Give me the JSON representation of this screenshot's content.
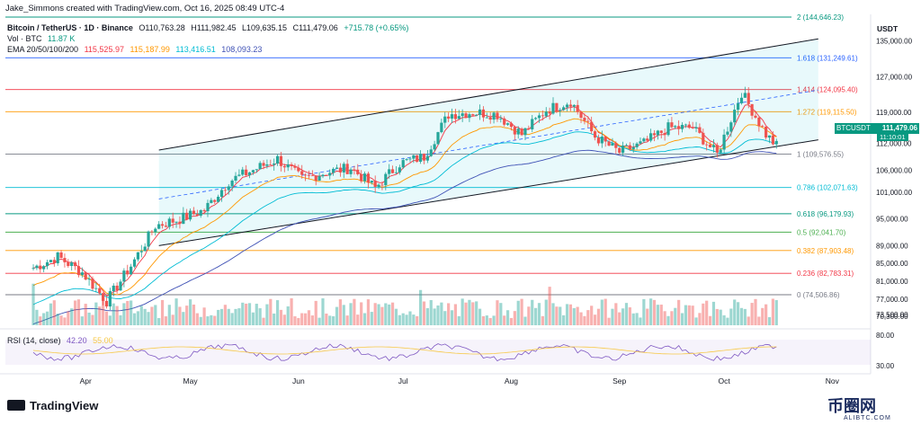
{
  "author": "Jake_Simmons created with TradingView.com, Oct 16, 2025 08:49 UTC-4",
  "symbol_title": "Bitcoin / TetherUS · 1D · Binance",
  "ohlc": {
    "o": "O110,763.28",
    "h": "H111,982.45",
    "l": "L109,635.15",
    "c": "C111,479.06",
    "chg": "+715.78 (+0.65%)"
  },
  "volume_label": "Vol · BTC",
  "volume_value": "11.87 K",
  "ema_label": "EMA 20/50/100/200",
  "ema_values": [
    "115,525.97",
    "115,187.99",
    "113,416.51",
    "108,093.23"
  ],
  "rsi_label": "RSI (14, close)",
  "rsi_values": [
    "42.20",
    "55.00"
  ],
  "currency": "USDT",
  "brand": "TradingView",
  "watermark": "币圈网",
  "watermark_sub": "ALIBTC.COM",
  "price_tag": {
    "symbol": "BTCUSDT",
    "price": "111,479.06",
    "countdown": "11:10:01"
  },
  "colors": {
    "up": "#26a69a",
    "down": "#ef5350",
    "ema20": "#f23645",
    "ema50": "#ff9800",
    "ema100": "#00bcd4",
    "ema200": "#3f51b5",
    "channel": "#131722",
    "rsi": "#7e57c2"
  },
  "chart_data": {
    "type": "candlestick",
    "ylim": [
      70300,
      141000
    ],
    "y_ticks": [
      "135,000.00",
      "127,000.00",
      "119,000.00",
      "112,000.00",
      "106,000.00",
      "101,000.00",
      "95,000.00",
      "89,000.00",
      "85,000.00",
      "81,000.00",
      "77,000.00",
      "73,500.00",
      "70,300.00"
    ],
    "x_ticks": [
      "Apr",
      "May",
      "Jun",
      "Jul",
      "Aug",
      "Sep",
      "Oct",
      "Nov"
    ],
    "rsi_ticks": [
      "80.00",
      "30.00"
    ],
    "fib_levels": [
      {
        "label": "2 (144,646.23)",
        "value": 144646.23,
        "color": "#089981"
      },
      {
        "label": "1.618 (131,249.61)",
        "value": 131249.61,
        "color": "#2962ff"
      },
      {
        "label": "1.414 (124,095.40)",
        "value": 124095.4,
        "color": "#f23645"
      },
      {
        "label": "1.272 (119,115.50)",
        "value": 119115.5,
        "color": "#ff9800"
      },
      {
        "label": "1 (109,576.55)",
        "value": 109576.55,
        "color": "#787b86"
      },
      {
        "label": "0.786 (102,071.63)",
        "value": 102071.63,
        "color": "#00bcd4"
      },
      {
        "label": "0.618 (96,179.93)",
        "value": 96179.93,
        "color": "#089981"
      },
      {
        "label": "0.5 (92,041.70)",
        "value": 92041.7,
        "color": "#4caf50"
      },
      {
        "label": "0.382 (87,903.48)",
        "value": 87903.48,
        "color": "#ff9800"
      },
      {
        "label": "0.236 (82,783.31)",
        "value": 82783.31,
        "color": "#f23645"
      },
      {
        "label": "0 (74,506.86)",
        "value": 74506.86,
        "color": "#787b86"
      }
    ],
    "channel": {
      "upper": [
        [
          "2025-04-22",
          110500
        ],
        [
          "2025-10-28",
          135500
        ]
      ],
      "lower": [
        [
          "2025-04-22",
          89000
        ],
        [
          "2025-10-28",
          112800
        ]
      ],
      "mid": [
        [
          "2025-04-22",
          99500
        ],
        [
          "2025-10-28",
          124000
        ]
      ]
    },
    "closes_weekly": [
      [
        "2025-03-17",
        84000
      ],
      [
        "2025-03-24",
        86500
      ],
      [
        "2025-03-31",
        83000
      ],
      [
        "2025-04-07",
        76500
      ],
      [
        "2025-04-14",
        84500
      ],
      [
        "2025-04-21",
        93500
      ],
      [
        "2025-04-28",
        95000
      ],
      [
        "2025-05-05",
        97000
      ],
      [
        "2025-05-12",
        103500
      ],
      [
        "2025-05-19",
        106000
      ],
      [
        "2025-05-26",
        108500
      ],
      [
        "2025-06-02",
        104000
      ],
      [
        "2025-06-09",
        105500
      ],
      [
        "2025-06-16",
        106500
      ],
      [
        "2025-06-23",
        102000
      ],
      [
        "2025-06-30",
        107500
      ],
      [
        "2025-07-07",
        109000
      ],
      [
        "2025-07-14",
        118500
      ],
      [
        "2025-07-21",
        119000
      ],
      [
        "2025-07-28",
        118500
      ],
      [
        "2025-08-04",
        114000
      ],
      [
        "2025-08-11",
        119500
      ],
      [
        "2025-08-18",
        121500
      ],
      [
        "2025-08-25",
        113500
      ],
      [
        "2025-09-01",
        110000
      ],
      [
        "2025-09-08",
        112000
      ],
      [
        "2025-09-15",
        115500
      ],
      [
        "2025-09-22",
        115500
      ],
      [
        "2025-09-29",
        109500
      ],
      [
        "2025-10-06",
        123500
      ],
      [
        "2025-10-13",
        114000
      ],
      [
        "2025-10-16",
        111479
      ]
    ]
  }
}
